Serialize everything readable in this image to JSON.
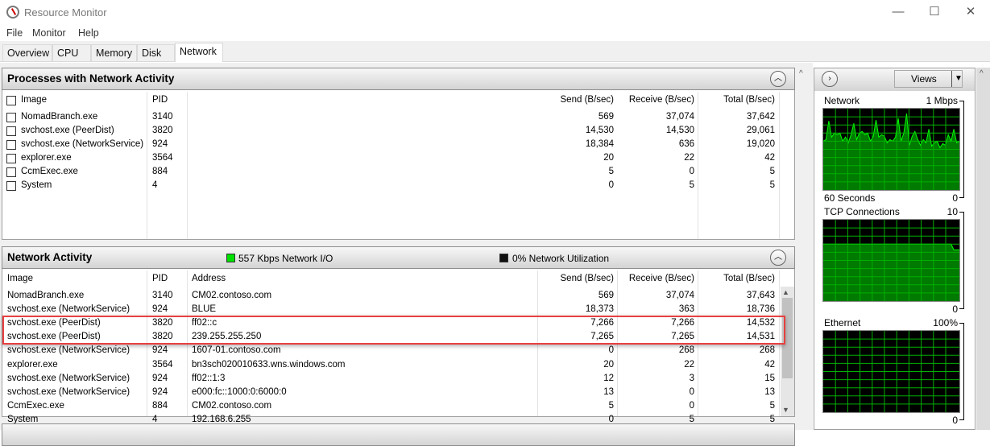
{
  "window": {
    "title": "Resource Monitor",
    "minimize": "—",
    "maximize": "☐",
    "close": "✕"
  },
  "menu": [
    "File",
    "Monitor",
    "Help"
  ],
  "tabs": [
    {
      "label": "Overview"
    },
    {
      "label": "CPU"
    },
    {
      "label": "Memory"
    },
    {
      "label": "Disk"
    },
    {
      "label": "Network",
      "selected": true
    }
  ],
  "processes": {
    "title": "Processes with Network Activity",
    "columns": [
      "Image",
      "PID",
      "Send (B/sec)",
      "Receive (B/sec)",
      "Total (B/sec)"
    ],
    "rows": [
      [
        "NomadBranch.exe",
        "3140",
        "569",
        "37,074",
        "37,642"
      ],
      [
        "svchost.exe (PeerDist)",
        "3820",
        "14,530",
        "14,530",
        "29,061"
      ],
      [
        "svchost.exe (NetworkService)",
        "924",
        "18,384",
        "636",
        "19,020"
      ],
      [
        "explorer.exe",
        "3564",
        "20",
        "22",
        "42"
      ],
      [
        "CcmExec.exe",
        "884",
        "5",
        "0",
        "5"
      ],
      [
        "System",
        "4",
        "0",
        "5",
        "5"
      ]
    ]
  },
  "network_activity": {
    "title": "Network Activity",
    "io_label": "557 Kbps Network I/O",
    "util_label": "0% Network Utilization",
    "io_color": "#00e000",
    "util_color": "#111111",
    "columns": [
      "Image",
      "PID",
      "Address",
      "Send (B/sec)",
      "Receive (B/sec)",
      "Total (B/sec)"
    ],
    "rows": [
      [
        "NomadBranch.exe",
        "3140",
        "CM02.contoso.com",
        "569",
        "37,074",
        "37,643"
      ],
      [
        "svchost.exe (NetworkService)",
        "924",
        "BLUE",
        "18,373",
        "363",
        "18,736"
      ],
      [
        "svchost.exe (PeerDist)",
        "3820",
        "ff02::c",
        "7,266",
        "7,266",
        "14,532"
      ],
      [
        "svchost.exe (PeerDist)",
        "3820",
        "239.255.255.250",
        "7,265",
        "7,265",
        "14,531"
      ],
      [
        "svchost.exe (NetworkService)",
        "924",
        "1607-01.contoso.com",
        "0",
        "268",
        "268"
      ],
      [
        "explorer.exe",
        "3564",
        "bn3sch020010633.wns.windows.com",
        "20",
        "22",
        "42"
      ],
      [
        "svchost.exe (NetworkService)",
        "924",
        "ff02::1:3",
        "12",
        "3",
        "15"
      ],
      [
        "svchost.exe (NetworkService)",
        "924",
        "e000:fc::1000:0:6000:0",
        "13",
        "0",
        "13"
      ],
      [
        "CcmExec.exe",
        "884",
        "CM02.contoso.com",
        "5",
        "0",
        "5"
      ],
      [
        "System",
        "4",
        "192.168.6.255",
        "0",
        "5",
        "5"
      ]
    ],
    "highlighted_rows": [
      2,
      3
    ]
  },
  "right": {
    "views_label": "Views",
    "graphs": [
      {
        "label": "Network",
        "max": "1 Mbps",
        "footer": "60 Seconds",
        "min": "0",
        "max_value": 100,
        "values": [
          60,
          62,
          85,
          65,
          70,
          68,
          70,
          60,
          65,
          58,
          68,
          82,
          62,
          70,
          72,
          68,
          70,
          60,
          66,
          86,
          65,
          68,
          66,
          58,
          62,
          60,
          65,
          88,
          60,
          70,
          94,
          55,
          66,
          72,
          62,
          55,
          62,
          58,
          75,
          54,
          58,
          60,
          52,
          57,
          55,
          68,
          60,
          75,
          58,
          60
        ]
      },
      {
        "label": "TCP Connections",
        "max": "10",
        "footer": "",
        "min": "0",
        "max_value": 10,
        "values": [
          7,
          7,
          7,
          7,
          7,
          7,
          7,
          7,
          7,
          7,
          7,
          7,
          7,
          7,
          7,
          7,
          7,
          7,
          7,
          7,
          7,
          7,
          7,
          7,
          7,
          7,
          7,
          7,
          7,
          7,
          7,
          7,
          7,
          7,
          7,
          7,
          7,
          7,
          7,
          7,
          7,
          7,
          7,
          7,
          7,
          7,
          7,
          6.3,
          6.3,
          6.3
        ]
      },
      {
        "label": "Ethernet",
        "max": "100%",
        "footer": "",
        "min": "0",
        "max_value": 100,
        "values": []
      }
    ]
  }
}
